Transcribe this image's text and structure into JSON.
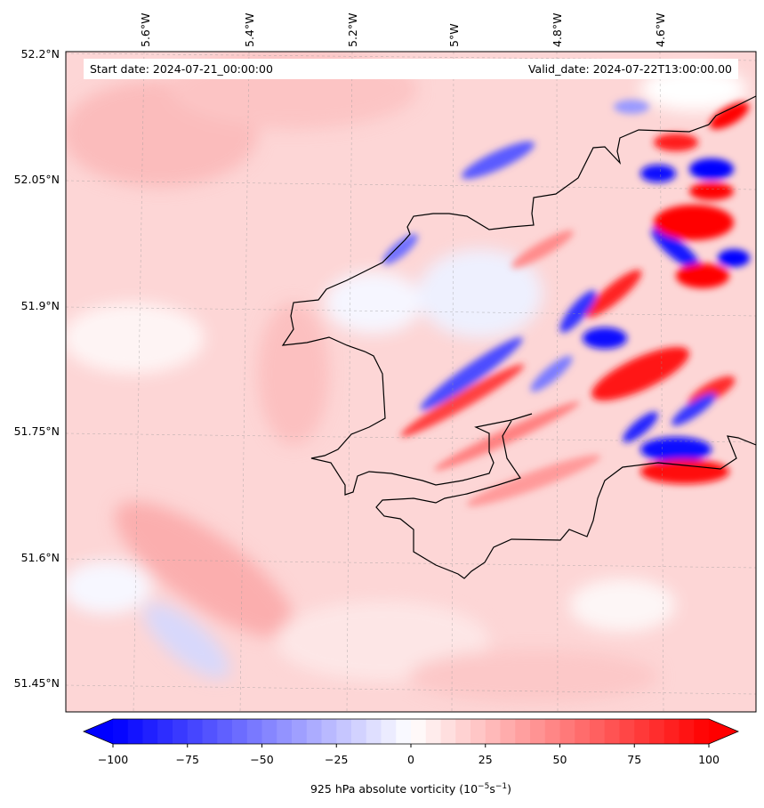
{
  "chart_data": {
    "type": "heatmap",
    "title_left": "Start date: 2024-07-21_00:00:00",
    "title_right": "Valid_date: 2024-07-22T13:00:00.00",
    "lon_ticks": [
      "5.6°W",
      "5.4°W",
      "5.2°W",
      "5°W",
      "4.8°W",
      "4.6°W"
    ],
    "lon_values": [
      -5.6,
      -5.4,
      -5.2,
      -5.0,
      -4.8,
      -4.6
    ],
    "lat_ticks": [
      "52.2°N",
      "52.05°N",
      "51.9°N",
      "51.75°N",
      "51.6°N",
      "51.45°N"
    ],
    "lat_values": [
      52.2,
      52.05,
      51.9,
      51.75,
      51.6,
      51.45
    ],
    "colorbar": {
      "label": "925 hPa absolute vorticity (10⁻⁵s⁻¹)",
      "label_main": "925 hPa absolute vorticity (10",
      "label_exp1": "−5",
      "label_mid": "s",
      "label_exp2": "−1",
      "label_end": ")",
      "min": -100,
      "max": 100,
      "step": 5,
      "extend": "both",
      "cmap": "bwr",
      "tick_values": [
        -100,
        -75,
        -50,
        -25,
        0,
        25,
        50,
        75,
        100
      ],
      "tick_labels": [
        "−100",
        "−75",
        "−50",
        "−25",
        "0",
        "25",
        "50",
        "75",
        "100"
      ]
    },
    "colors": {
      "negative": "#0000ff",
      "zero": "#ffffff",
      "positive": "#ff0000",
      "coast": "#000000"
    }
  }
}
